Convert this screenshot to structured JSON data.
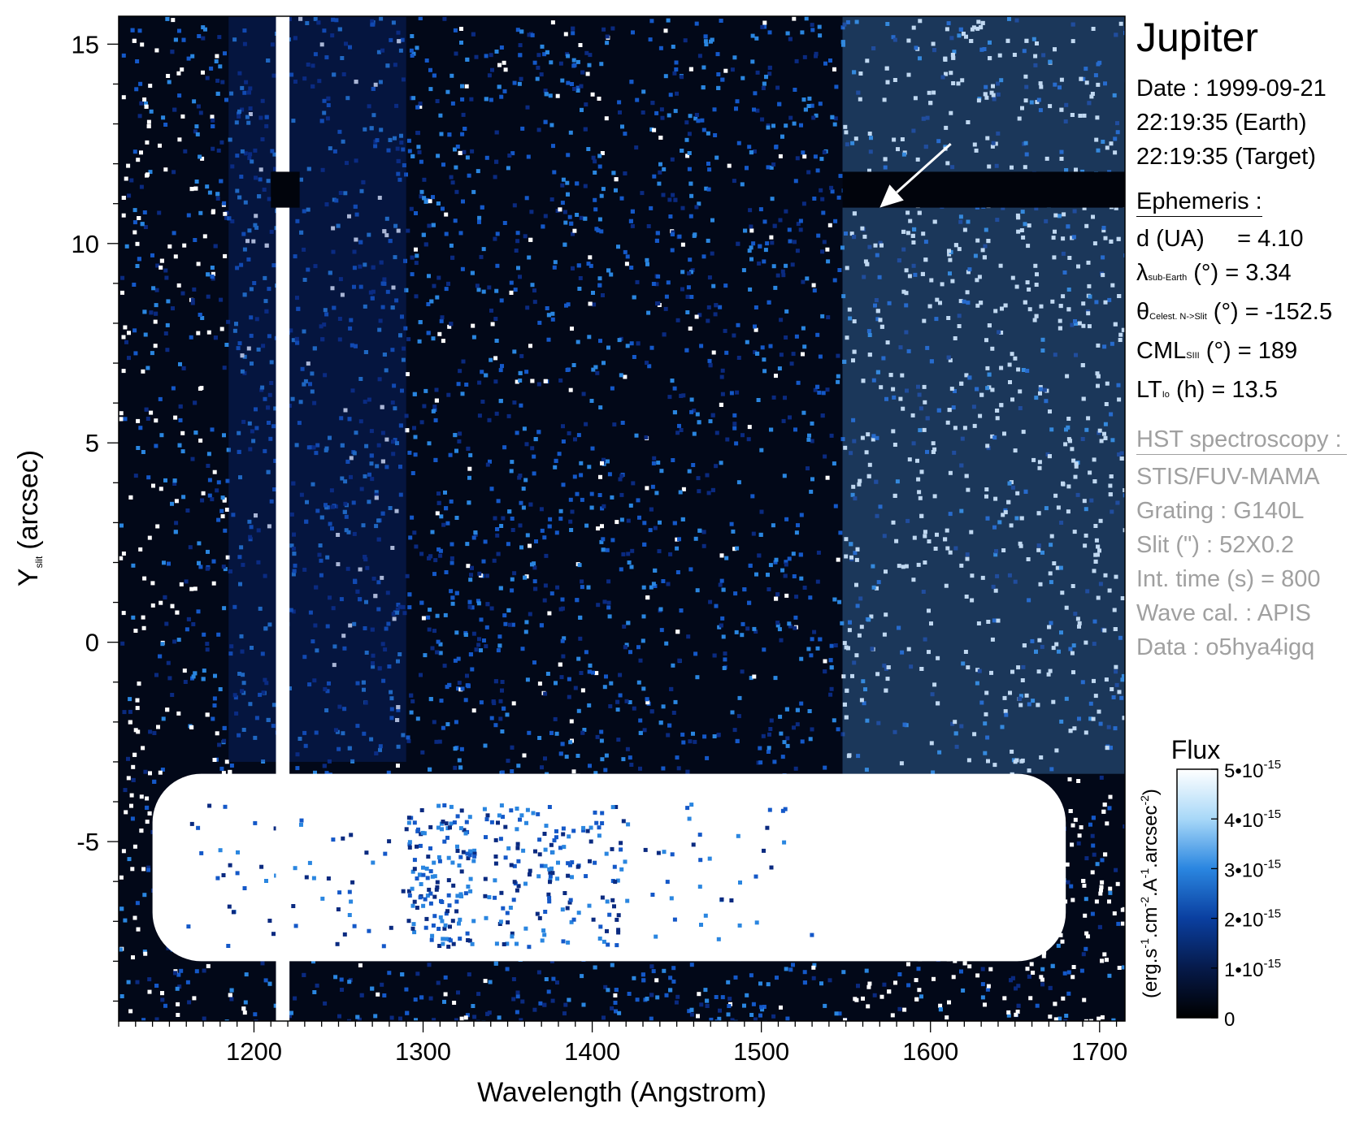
{
  "chart_data": {
    "type": "heatmap",
    "xlabel": "Wavelength (Angstrom)",
    "ylabel_main": "Y",
    "ylabel_sub": "slit",
    "ylabel_unit": "(arcsec)",
    "xlim": [
      1120,
      1715
    ],
    "ylim": [
      -9.5,
      15.7
    ],
    "x_ticks": [
      1200,
      1300,
      1400,
      1500,
      1600,
      1700
    ],
    "x_tick_labels": [
      "1200",
      "1300",
      "1400",
      "1500",
      "1600",
      "1700"
    ],
    "y_ticks": [
      15,
      10,
      5,
      0,
      -5
    ],
    "y_tick_labels": [
      "15",
      "10",
      "5",
      "0",
      "-5"
    ],
    "features": {
      "lyman_alpha_line_x": [
        1213,
        1221
      ],
      "slit_bar_y": [
        10.9,
        11.8
      ],
      "bar_gap_x": [
        1210,
        1227
      ],
      "bright_band_y": [
        -8.0,
        -3.3
      ],
      "bright_band_x": [
        1140,
        1680
      ],
      "arrow_from": [
        1612,
        12.5
      ],
      "arrow_to": [
        1570,
        10.9
      ]
    },
    "colorbar": {
      "title": "Flux",
      "label": "(erg.s-1.cm-2.A-1.arcsec-2)",
      "range": [
        0,
        5e-15
      ],
      "tick_labels": [
        "5•10-15",
        "4•10-15",
        "3•10-15",
        "2•10-15",
        "1•10-15",
        "0"
      ],
      "tick_values": [
        5e-15,
        4e-15,
        3e-15,
        2e-15,
        1e-15,
        0
      ],
      "colors": [
        "#000000",
        "#061a4a",
        "#0a3fa0",
        "#2a86e0",
        "#a8d8f8",
        "#ffffff"
      ]
    }
  },
  "info": {
    "target": "Jupiter",
    "date_line": "Date : 1999-09-21",
    "earth_time": "22:19:35 (Earth)",
    "target_time": "22:19:35 (Target)",
    "ephemeris_title": "Ephemeris :",
    "d_ua": "d (UA)     = 4.10",
    "lambda_main": "λ",
    "lambda_sub": "sub-Earth",
    "lambda_value": " (°)  = 3.34",
    "theta_main": "θ",
    "theta_sub": "Celest. N->Slit",
    "theta_value": " (°) = -152.5",
    "cml_main": "CML",
    "cml_sub": "SIII",
    "cml_value": " (°) = 189",
    "lt_main": "LT",
    "lt_sub": "Io",
    "lt_value": " (h) = 13.5",
    "hst_title": "HST spectroscopy :",
    "instrument": "STIS/FUV-MAMA",
    "grating": "Grating : G140L",
    "slit": "Slit (\") : 52X0.2",
    "int_time": "Int. time (s) = 800",
    "wave_cal": "Wave cal. : APIS",
    "data_id": "Data : o5hya4igq"
  }
}
